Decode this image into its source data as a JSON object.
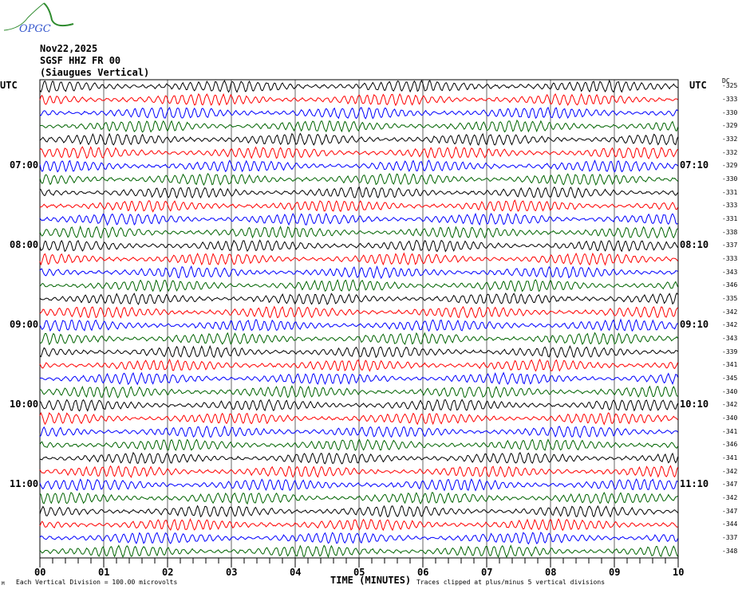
{
  "logo_text": "OPGC",
  "header": {
    "date": "Nov22,2025",
    "station": "SGSF HHZ FR 00",
    "location": "(Siaugues Vertical)"
  },
  "utc_left": "UTC",
  "utc_right": "UTC",
  "dc_label": "DC",
  "colors": {
    "trace_cycle": [
      "#000000",
      "#ff0000",
      "#0000ff",
      "#006400"
    ],
    "frame": "#000000",
    "grid": "#000000"
  },
  "footer": {
    "left_note": "Each Vertical Division =  100.00 microvolts",
    "xlabel": "TIME (MINUTES)",
    "right_note": "Traces clipped at plus/minus 5 vertical divisions",
    "corner_mark": "M"
  },
  "chart_data": {
    "type": "line",
    "subtype": "helicorder",
    "xlabel": "TIME (MINUTES)",
    "xlim": [
      0,
      10
    ],
    "x_tick_labels": [
      "00",
      "01",
      "02",
      "03",
      "04",
      "05",
      "06",
      "07",
      "08",
      "09",
      "10"
    ],
    "minor_tick_step": 0.2,
    "grid": "vertical lines each minute",
    "row_minutes": 10,
    "left_hour_labels": [
      {
        "row": 6,
        "label": "07:00"
      },
      {
        "row": 12,
        "label": "08:00"
      },
      {
        "row": 18,
        "label": "09:00"
      },
      {
        "row": 24,
        "label": "10:00"
      },
      {
        "row": 30,
        "label": "11:00"
      }
    ],
    "right_hour_labels": [
      {
        "row": 6,
        "label": "07:10"
      },
      {
        "row": 12,
        "label": "08:10"
      },
      {
        "row": 18,
        "label": "09:10"
      },
      {
        "row": 24,
        "label": "10:10"
      },
      {
        "row": 30,
        "label": "11:10"
      }
    ],
    "dc_offsets": [
      -325,
      -333,
      -330,
      -329,
      -332,
      -332,
      -329,
      -330,
      -331,
      -333,
      -331,
      -338,
      -337,
      -333,
      -343,
      -346,
      -335,
      -342,
      -342,
      -343,
      -339,
      -341,
      -345,
      -340,
      -342,
      -340,
      -341,
      -346,
      -341,
      -342,
      -347,
      -342,
      -347,
      -344,
      -337,
      -348
    ]
  }
}
